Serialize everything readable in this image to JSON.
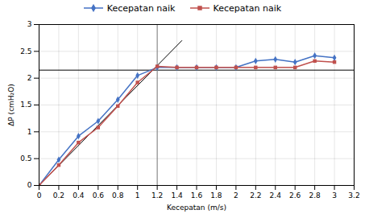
{
  "chart_data": {
    "type": "line",
    "xlabel": "Kecepatan (m/s)",
    "ylabel": "ΔP (cmH₂O)",
    "x": [
      0,
      0.2,
      0.4,
      0.6,
      0.8,
      1.0,
      1.2,
      1.4,
      1.6,
      1.8,
      2.0,
      2.2,
      2.4,
      2.6,
      2.8,
      3.0
    ],
    "series": [
      {
        "name": "Kecepatan naik",
        "color": "#4472C4",
        "marker": "diamond",
        "values": [
          0,
          0.48,
          0.92,
          1.2,
          1.6,
          2.05,
          2.2,
          2.2,
          2.2,
          2.2,
          2.2,
          2.32,
          2.35,
          2.3,
          2.42,
          2.38
        ]
      },
      {
        "name": "Kecepatan naik",
        "color": "#C0504D",
        "marker": "square",
        "values": [
          0,
          0.38,
          0.8,
          1.08,
          1.48,
          1.92,
          2.22,
          2.2,
          2.2,
          2.2,
          2.2,
          2.2,
          2.2,
          2.2,
          2.32,
          2.3
        ]
      }
    ],
    "diag_x": [
      0,
      1.45
    ],
    "diag_y": [
      0,
      2.7
    ],
    "vline_x": 1.2,
    "hline_y": 2.15,
    "xlim": [
      0,
      3.2
    ],
    "ylim": [
      0,
      3.0
    ],
    "xticks": [
      0,
      0.2,
      0.4,
      0.6,
      0.8,
      1.0,
      1.2,
      1.4,
      1.6,
      1.8,
      2.0,
      2.2,
      2.4,
      2.6,
      2.8,
      3.0,
      3.2
    ],
    "yticks": [
      0,
      0.5,
      1.0,
      1.5,
      2.0,
      2.5,
      3.0
    ],
    "grid": true,
    "legend": "top"
  }
}
